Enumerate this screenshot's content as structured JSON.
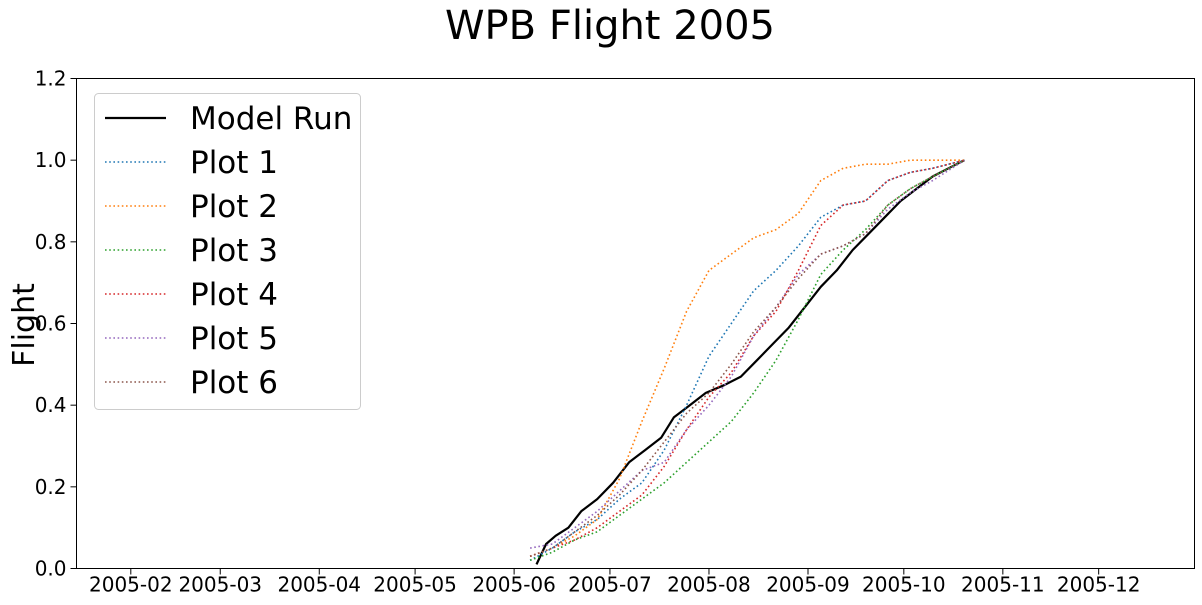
{
  "chart_data": {
    "type": "line",
    "title": "WPB Flight 2005",
    "xlabel": "",
    "ylabel": "Flight",
    "xlim": [
      "2005-01-15",
      "2005-12-31"
    ],
    "ylim": [
      0,
      1.2
    ],
    "grid": false,
    "legend_position": "top-left",
    "x_ticks": [
      "2005-02",
      "2005-03",
      "2005-04",
      "2005-05",
      "2005-06",
      "2005-07",
      "2005-08",
      "2005-09",
      "2005-10",
      "2005-11",
      "2005-12"
    ],
    "y_ticks": [
      "0.0",
      "0.2",
      "0.4",
      "0.6",
      "0.8",
      "1.0",
      "1.2"
    ],
    "series": [
      {
        "name": "Model Run",
        "color": "#000000",
        "style": "solid",
        "points": [
          [
            "2005-06-08",
            0.01
          ],
          [
            "2005-06-11",
            0.06
          ],
          [
            "2005-06-14",
            0.08
          ],
          [
            "2005-06-18",
            0.1
          ],
          [
            "2005-06-22",
            0.14
          ],
          [
            "2005-06-27",
            0.17
          ],
          [
            "2005-07-02",
            0.21
          ],
          [
            "2005-07-07",
            0.26
          ],
          [
            "2005-07-12",
            0.29
          ],
          [
            "2005-07-17",
            0.32
          ],
          [
            "2005-07-21",
            0.37
          ],
          [
            "2005-07-26",
            0.4
          ],
          [
            "2005-07-31",
            0.43
          ],
          [
            "2005-08-06",
            0.45
          ],
          [
            "2005-08-11",
            0.47
          ],
          [
            "2005-08-16",
            0.51
          ],
          [
            "2005-08-21",
            0.55
          ],
          [
            "2005-08-26",
            0.59
          ],
          [
            "2005-08-31",
            0.64
          ],
          [
            "2005-09-05",
            0.69
          ],
          [
            "2005-09-10",
            0.73
          ],
          [
            "2005-09-15",
            0.78
          ],
          [
            "2005-09-20",
            0.82
          ],
          [
            "2005-09-25",
            0.86
          ],
          [
            "2005-09-30",
            0.9
          ],
          [
            "2005-10-05",
            0.93
          ],
          [
            "2005-10-10",
            0.96
          ],
          [
            "2005-10-15",
            0.98
          ],
          [
            "2005-10-20",
            1.0
          ]
        ]
      },
      {
        "name": "Plot 1",
        "color": "#1f77b4",
        "style": "dotted",
        "points": [
          [
            "2005-06-06",
            0.02
          ],
          [
            "2005-06-13",
            0.05
          ],
          [
            "2005-06-20",
            0.09
          ],
          [
            "2005-06-27",
            0.12
          ],
          [
            "2005-07-04",
            0.17
          ],
          [
            "2005-07-11",
            0.21
          ],
          [
            "2005-07-18",
            0.29
          ],
          [
            "2005-07-25",
            0.4
          ],
          [
            "2005-08-01",
            0.52
          ],
          [
            "2005-08-08",
            0.6
          ],
          [
            "2005-08-15",
            0.68
          ],
          [
            "2005-08-22",
            0.73
          ],
          [
            "2005-08-29",
            0.79
          ],
          [
            "2005-09-05",
            0.86
          ],
          [
            "2005-09-12",
            0.89
          ],
          [
            "2005-09-19",
            0.9
          ],
          [
            "2005-09-26",
            0.95
          ],
          [
            "2005-10-03",
            0.97
          ],
          [
            "2005-10-10",
            0.98
          ],
          [
            "2005-10-20",
            1.0
          ]
        ]
      },
      {
        "name": "Plot 2",
        "color": "#ff7f0e",
        "style": "dotted",
        "points": [
          [
            "2005-06-06",
            0.03
          ],
          [
            "2005-06-13",
            0.05
          ],
          [
            "2005-06-20",
            0.08
          ],
          [
            "2005-06-27",
            0.12
          ],
          [
            "2005-07-04",
            0.22
          ],
          [
            "2005-07-11",
            0.36
          ],
          [
            "2005-07-18",
            0.49
          ],
          [
            "2005-07-25",
            0.63
          ],
          [
            "2005-08-01",
            0.73
          ],
          [
            "2005-08-08",
            0.77
          ],
          [
            "2005-08-15",
            0.81
          ],
          [
            "2005-08-22",
            0.83
          ],
          [
            "2005-08-29",
            0.87
          ],
          [
            "2005-09-05",
            0.95
          ],
          [
            "2005-09-12",
            0.98
          ],
          [
            "2005-09-19",
            0.99
          ],
          [
            "2005-09-26",
            0.99
          ],
          [
            "2005-10-03",
            1.0
          ],
          [
            "2005-10-20",
            1.0
          ]
        ]
      },
      {
        "name": "Plot 3",
        "color": "#2ca02c",
        "style": "dotted",
        "points": [
          [
            "2005-06-06",
            0.02
          ],
          [
            "2005-06-13",
            0.04
          ],
          [
            "2005-06-20",
            0.07
          ],
          [
            "2005-06-27",
            0.09
          ],
          [
            "2005-07-04",
            0.13
          ],
          [
            "2005-07-11",
            0.17
          ],
          [
            "2005-07-18",
            0.21
          ],
          [
            "2005-07-25",
            0.26
          ],
          [
            "2005-08-01",
            0.31
          ],
          [
            "2005-08-08",
            0.36
          ],
          [
            "2005-08-15",
            0.43
          ],
          [
            "2005-08-22",
            0.51
          ],
          [
            "2005-08-29",
            0.61
          ],
          [
            "2005-09-05",
            0.72
          ],
          [
            "2005-09-12",
            0.78
          ],
          [
            "2005-09-19",
            0.83
          ],
          [
            "2005-09-26",
            0.89
          ],
          [
            "2005-10-03",
            0.93
          ],
          [
            "2005-10-10",
            0.96
          ],
          [
            "2005-10-20",
            1.0
          ]
        ]
      },
      {
        "name": "Plot 4",
        "color": "#d62728",
        "style": "dotted",
        "points": [
          [
            "2005-06-06",
            0.03
          ],
          [
            "2005-06-13",
            0.05
          ],
          [
            "2005-06-20",
            0.07
          ],
          [
            "2005-06-27",
            0.1
          ],
          [
            "2005-07-04",
            0.14
          ],
          [
            "2005-07-11",
            0.18
          ],
          [
            "2005-07-18",
            0.25
          ],
          [
            "2005-07-25",
            0.34
          ],
          [
            "2005-08-01",
            0.42
          ],
          [
            "2005-08-08",
            0.48
          ],
          [
            "2005-08-15",
            0.57
          ],
          [
            "2005-08-22",
            0.63
          ],
          [
            "2005-08-29",
            0.73
          ],
          [
            "2005-09-05",
            0.84
          ],
          [
            "2005-09-12",
            0.89
          ],
          [
            "2005-09-19",
            0.9
          ],
          [
            "2005-09-26",
            0.95
          ],
          [
            "2005-10-03",
            0.97
          ],
          [
            "2005-10-10",
            0.98
          ],
          [
            "2005-10-20",
            1.0
          ]
        ]
      },
      {
        "name": "Plot 5",
        "color": "#9467bd",
        "style": "dotted",
        "points": [
          [
            "2005-06-06",
            0.05
          ],
          [
            "2005-06-13",
            0.06
          ],
          [
            "2005-06-20",
            0.1
          ],
          [
            "2005-06-27",
            0.14
          ],
          [
            "2005-07-04",
            0.19
          ],
          [
            "2005-07-11",
            0.24
          ],
          [
            "2005-07-18",
            0.26
          ],
          [
            "2005-07-25",
            0.34
          ],
          [
            "2005-08-01",
            0.4
          ],
          [
            "2005-08-08",
            0.47
          ],
          [
            "2005-08-15",
            0.57
          ],
          [
            "2005-08-22",
            0.64
          ],
          [
            "2005-08-29",
            0.72
          ],
          [
            "2005-09-05",
            0.77
          ],
          [
            "2005-09-12",
            0.79
          ],
          [
            "2005-09-19",
            0.82
          ],
          [
            "2005-09-26",
            0.88
          ],
          [
            "2005-10-03",
            0.92
          ],
          [
            "2005-10-10",
            0.95
          ],
          [
            "2005-10-20",
            1.0
          ]
        ]
      },
      {
        "name": "Plot 6",
        "color": "#8c564b",
        "style": "dotted",
        "points": [
          [
            "2005-06-06",
            0.03
          ],
          [
            "2005-06-13",
            0.05
          ],
          [
            "2005-06-20",
            0.09
          ],
          [
            "2005-06-27",
            0.13
          ],
          [
            "2005-07-04",
            0.18
          ],
          [
            "2005-07-11",
            0.24
          ],
          [
            "2005-07-18",
            0.31
          ],
          [
            "2005-07-25",
            0.38
          ],
          [
            "2005-08-01",
            0.43
          ],
          [
            "2005-08-08",
            0.5
          ],
          [
            "2005-08-15",
            0.58
          ],
          [
            "2005-08-22",
            0.64
          ],
          [
            "2005-08-29",
            0.71
          ],
          [
            "2005-09-05",
            0.77
          ],
          [
            "2005-09-12",
            0.79
          ],
          [
            "2005-09-19",
            0.82
          ],
          [
            "2005-09-26",
            0.89
          ],
          [
            "2005-10-03",
            0.93
          ],
          [
            "2005-10-10",
            0.96
          ],
          [
            "2005-10-20",
            1.0
          ]
        ]
      }
    ]
  }
}
